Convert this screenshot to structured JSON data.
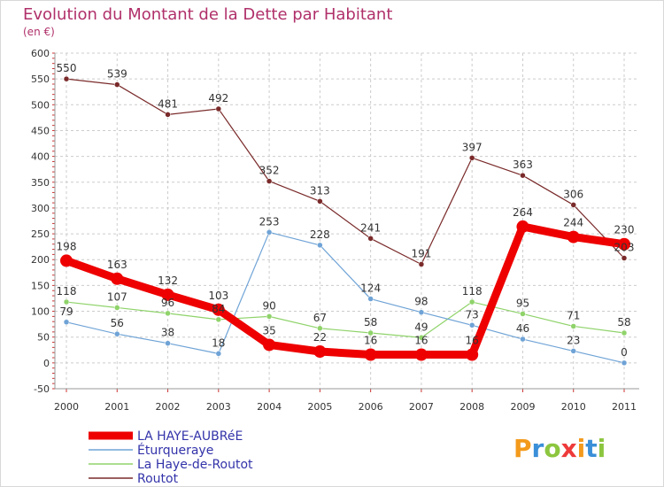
{
  "chart_data": {
    "type": "line",
    "title": "Evolution du Montant de la Dette par Habitant",
    "subtitle": "(en €)",
    "x": [
      "2000",
      "2001",
      "2002",
      "2003",
      "2004",
      "2005",
      "2006",
      "2007",
      "2008",
      "2009",
      "2010",
      "2011"
    ],
    "ylim": [
      -50,
      600
    ],
    "yticks": [
      -50,
      0,
      50,
      100,
      150,
      200,
      250,
      300,
      350,
      400,
      450,
      500,
      550,
      600
    ],
    "grid": true,
    "legend": "bottom-left",
    "series": [
      {
        "name": "Routot",
        "color": "#7a2a2a",
        "values": [
          550,
          539,
          481,
          492,
          352,
          313,
          241,
          191,
          397,
          363,
          306,
          203
        ]
      },
      {
        "name": "La Haye-de-Routot",
        "color": "#8fd36a",
        "values": [
          118,
          107,
          96,
          84,
          90,
          67,
          58,
          49,
          118,
          95,
          71,
          58
        ]
      },
      {
        "name": "Éturqueraye",
        "color": "#6fa3d6",
        "values": [
          79,
          56,
          38,
          18,
          253,
          228,
          124,
          98,
          73,
          46,
          23,
          0
        ]
      },
      {
        "name": "LA HAYE-AUBRéE",
        "color": "#ee0000",
        "values": [
          198,
          163,
          132,
          103,
          35,
          22,
          16,
          16,
          16,
          264,
          244,
          230
        ]
      }
    ]
  },
  "legend_items": [
    {
      "label": "LA HAYE-AUBRéE",
      "color": "#ee0000"
    },
    {
      "label": "Éturqueraye",
      "color": "#6fa3d6"
    },
    {
      "label": "La Haye-de-Routot",
      "color": "#8fd36a"
    },
    {
      "label": "Routot",
      "color": "#7a2a2a"
    }
  ],
  "brand": "Proxiti",
  "colors": {
    "title": "#b0306a",
    "axis": "#333333",
    "grid": "#cccccc",
    "legend_text": "#3333aa"
  }
}
